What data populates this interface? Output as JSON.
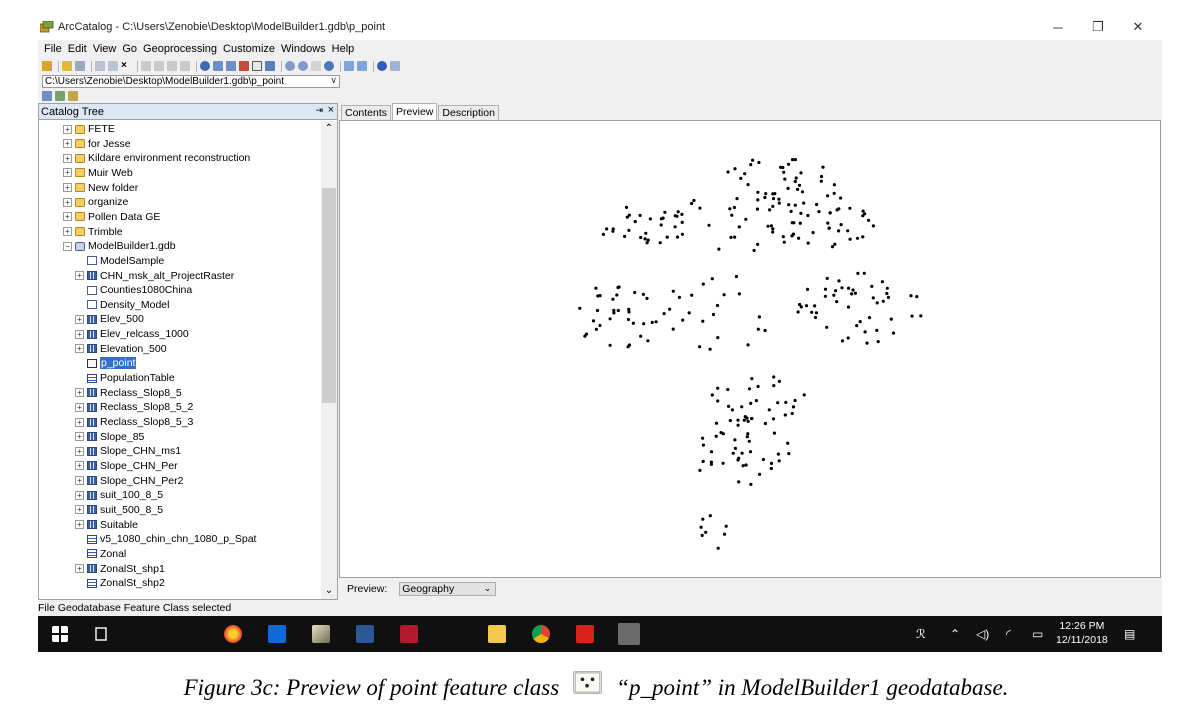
{
  "window": {
    "title": "ArcCatalog - C:\\Users\\Zenobie\\Desktop\\ModelBuilder1.gdb\\p_point",
    "controls": {
      "minimize": "─",
      "restore": "❐",
      "close": "✕"
    }
  },
  "menu": [
    "File",
    "Edit",
    "View",
    "Go",
    "Geoprocessing",
    "Customize",
    "Windows",
    "Help"
  ],
  "location": {
    "value": "C:\\Users\\Zenobie\\Desktop\\ModelBuilder1.gdb\\p_point",
    "dropdown": "∨"
  },
  "catalog_tree": {
    "header": "Catalog Tree",
    "pin": "⇥",
    "close": "×",
    "items": [
      {
        "label": "FETE",
        "icon": "folder-icon",
        "level": 1,
        "expander": "+"
      },
      {
        "label": "for Jesse",
        "icon": "folder-icon",
        "level": 1,
        "expander": "+"
      },
      {
        "label": "Kildare environment reconstruction",
        "icon": "folder-icon",
        "level": 1,
        "expander": "+"
      },
      {
        "label": "Muir Web",
        "icon": "folder-icon",
        "level": 1,
        "expander": "+"
      },
      {
        "label": "New folder",
        "icon": "folder-icon",
        "level": 1,
        "expander": "+"
      },
      {
        "label": "organize",
        "icon": "folder-icon",
        "level": 1,
        "expander": "+"
      },
      {
        "label": "Pollen Data GE",
        "icon": "folder-icon",
        "level": 1,
        "expander": "+"
      },
      {
        "label": "Trimble",
        "icon": "folder-icon",
        "level": 1,
        "expander": "+"
      },
      {
        "label": "ModelBuilder1.gdb",
        "icon": "geodatabase-icon",
        "level": 1,
        "expander": "−"
      },
      {
        "label": "ModelSample",
        "icon": "model-icon",
        "level": 2,
        "expander": ""
      },
      {
        "label": "CHN_msk_alt_ProjectRaster",
        "icon": "raster-icon",
        "level": 2,
        "expander": "+"
      },
      {
        "label": "Counties1080China",
        "icon": "feature-class-icon",
        "level": 2,
        "expander": ""
      },
      {
        "label": "Density_Model",
        "icon": "feature-class-icon",
        "level": 2,
        "expander": ""
      },
      {
        "label": "Elev_500",
        "icon": "raster-icon",
        "level": 2,
        "expander": "+"
      },
      {
        "label": "Elev_relcass_1000",
        "icon": "raster-icon",
        "level": 2,
        "expander": "+"
      },
      {
        "label": "Elevation_500",
        "icon": "raster-icon",
        "level": 2,
        "expander": "+"
      },
      {
        "label": "p_point",
        "icon": "point-feature-class-icon",
        "level": 2,
        "expander": "",
        "selected": true
      },
      {
        "label": "PopulationTable",
        "icon": "table-icon",
        "level": 2,
        "expander": ""
      },
      {
        "label": "Reclass_Slop8_5",
        "icon": "raster-icon",
        "level": 2,
        "expander": "+"
      },
      {
        "label": "Reclass_Slop8_5_2",
        "icon": "raster-icon",
        "level": 2,
        "expander": "+"
      },
      {
        "label": "Reclass_Slop8_5_3",
        "icon": "raster-icon",
        "level": 2,
        "expander": "+"
      },
      {
        "label": "Slope_85",
        "icon": "raster-icon",
        "level": 2,
        "expander": "+"
      },
      {
        "label": "Slope_CHN_ms1",
        "icon": "raster-icon",
        "level": 2,
        "expander": "+"
      },
      {
        "label": "Slope_CHN_Per",
        "icon": "raster-icon",
        "level": 2,
        "expander": "+"
      },
      {
        "label": "Slope_CHN_Per2",
        "icon": "raster-icon",
        "level": 2,
        "expander": "+"
      },
      {
        "label": "suit_100_8_5",
        "icon": "raster-icon",
        "level": 2,
        "expander": "+"
      },
      {
        "label": "suit_500_8_5",
        "icon": "raster-icon",
        "level": 2,
        "expander": "+"
      },
      {
        "label": "Suitable",
        "icon": "raster-icon",
        "level": 2,
        "expander": "+"
      },
      {
        "label": "v5_1080_chin_chn_1080_p_Spat",
        "icon": "table-icon",
        "level": 2,
        "expander": ""
      },
      {
        "label": "Zonal",
        "icon": "table-icon",
        "level": 2,
        "expander": ""
      },
      {
        "label": "ZonalSt_shp1",
        "icon": "raster-icon",
        "level": 2,
        "expander": "+"
      },
      {
        "label": "ZonalSt_shp2",
        "icon": "table-icon",
        "level": 2,
        "expander": ""
      }
    ]
  },
  "tabs": [
    {
      "label": "Contents",
      "active": false
    },
    {
      "label": "Preview",
      "active": true
    },
    {
      "label": "Description",
      "active": false
    }
  ],
  "preview": {
    "label": "Preview:",
    "mode": "Geography",
    "point_color": "#000000",
    "point_count": 311
  },
  "status": "File Geodatabase Feature Class selected",
  "taskbar": {
    "apps": [
      "start-icon",
      "task-view-icon",
      "firefox-icon",
      "dropbox-icon",
      "pen-app-icon",
      "word-icon",
      "mendeley-icon",
      "file-explorer-icon",
      "chrome-icon",
      "acrobat-icon",
      "arccatalog-icon"
    ],
    "time": "12:26 PM",
    "date": "12/11/2018"
  },
  "caption": {
    "before": "Figure 3c: Preview of point feature class",
    "after": "“p_point” in ModelBuilder1 geodatabase."
  }
}
